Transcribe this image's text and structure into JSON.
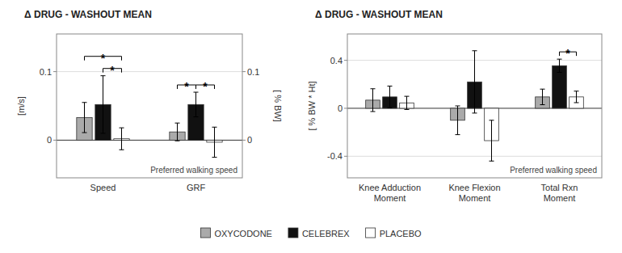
{
  "chart_data": [
    {
      "type": "bar",
      "title": "Δ DRUG - WASHOUT MEAN",
      "y_label": "[m/s]",
      "y2_label": "[ % BW]",
      "note": "Preferred walking speed",
      "categories": [
        "Speed",
        "GRF"
      ],
      "series": [
        {
          "name": "OXYCODONE",
          "color": "#aaaaaa",
          "values": [
            0.033,
            0.012
          ],
          "errors": [
            0.022,
            0.013
          ]
        },
        {
          "name": "CELEBREX",
          "color": "#111111",
          "values": [
            0.052,
            0.052
          ],
          "errors": [
            0.042,
            0.018
          ]
        },
        {
          "name": "PLACEBO",
          "color": "#ffffff",
          "values": [
            0.002,
            -0.003
          ],
          "errors": [
            0.016,
            0.022
          ]
        }
      ],
      "ylim": [
        -0.055,
        0.155
      ],
      "yticks": [
        0,
        0.1
      ],
      "y2lim": [
        -0.055,
        0.155
      ],
      "y2ticks": [
        0,
        0.1
      ],
      "grid": true,
      "legend": "bottom",
      "annotations": [
        {
          "text": "*",
          "category": "Speed",
          "from": "OXYCODONE",
          "to": "PLACEBO"
        },
        {
          "text": "*",
          "category": "Speed",
          "from": "CELEBREX",
          "to": "PLACEBO"
        },
        {
          "text": "*",
          "category": "GRF",
          "from": "OXYCODONE",
          "to": "CELEBREX"
        },
        {
          "text": "*",
          "category": "GRF",
          "from": "CELEBREX",
          "to": "PLACEBO"
        }
      ]
    },
    {
      "type": "bar",
      "title": "Δ DRUG - WASHOUT MEAN",
      "y_label": "[ % BW * Ht]",
      "note": "Preferred walking speed",
      "categories": [
        "Knee Adduction\nMoment",
        "Knee Flexion\nMoment",
        "Total Rxn\nMoment"
      ],
      "series": [
        {
          "name": "OXYCODONE",
          "color": "#aaaaaa",
          "values": [
            0.068,
            -0.1,
            0.095
          ],
          "errors": [
            0.095,
            0.12,
            0.065
          ]
        },
        {
          "name": "CELEBREX",
          "color": "#111111",
          "values": [
            0.095,
            0.22,
            0.355
          ],
          "errors": [
            0.09,
            0.26,
            0.055
          ]
        },
        {
          "name": "PLACEBO",
          "color": "#ffffff",
          "values": [
            0.045,
            -0.27,
            0.095
          ],
          "errors": [
            0.055,
            0.17,
            0.048
          ]
        }
      ],
      "ylim": [
        -0.58,
        0.62
      ],
      "yticks": [
        -0.4,
        0,
        0.4
      ],
      "grid": true,
      "legend": "bottom",
      "annotations": [
        {
          "text": "*",
          "category": "Total Rxn\nMoment",
          "from": "CELEBREX",
          "to": "PLACEBO"
        }
      ]
    }
  ]
}
